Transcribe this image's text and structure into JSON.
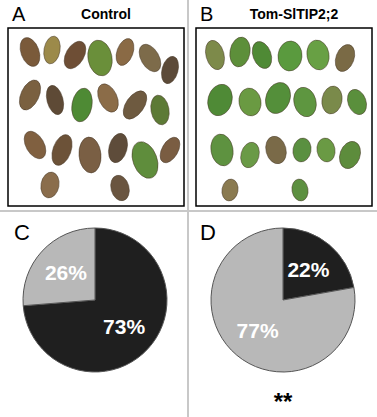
{
  "panels": [
    {
      "label": "A",
      "title": "Control"
    },
    {
      "label": "B",
      "title": "Tom-SlTIP2;2"
    }
  ],
  "chart_data": [
    {
      "type": "pie",
      "title": "C",
      "values": [
        73,
        26
      ],
      "value_labels": [
        "73%",
        "26%"
      ],
      "colors": [
        "#1f1f1f",
        "#b8b8b8"
      ],
      "data_labels": true
    },
    {
      "type": "pie",
      "title": "D",
      "values": [
        22,
        77
      ],
      "value_labels": [
        "22%",
        "77%"
      ],
      "colors": [
        "#1f1f1f",
        "#b8b8b8"
      ],
      "data_labels": true,
      "annotation": "**"
    }
  ]
}
